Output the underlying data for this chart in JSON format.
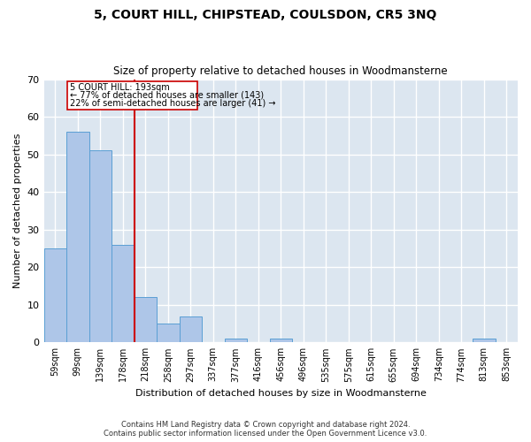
{
  "title": "5, COURT HILL, CHIPSTEAD, COULSDON, CR5 3NQ",
  "subtitle": "Size of property relative to detached houses in Woodmansterne",
  "xlabel": "Distribution of detached houses by size in Woodmansterne",
  "ylabel": "Number of detached properties",
  "categories": [
    "59sqm",
    "99sqm",
    "139sqm",
    "178sqm",
    "218sqm",
    "258sqm",
    "297sqm",
    "337sqm",
    "377sqm",
    "416sqm",
    "456sqm",
    "496sqm",
    "535sqm",
    "575sqm",
    "615sqm",
    "655sqm",
    "694sqm",
    "734sqm",
    "774sqm",
    "813sqm",
    "853sqm"
  ],
  "values": [
    25,
    56,
    51,
    26,
    12,
    5,
    7,
    0,
    1,
    0,
    1,
    0,
    0,
    0,
    0,
    0,
    0,
    0,
    0,
    1,
    0
  ],
  "bar_color": "#aec6e8",
  "bar_edgecolor": "#5a9fd4",
  "vertical_line_x": 3.5,
  "vertical_line_color": "#cc0000",
  "annotation_line1": "5 COURT HILL: 193sqm",
  "annotation_line2": "← 77% of detached houses are smaller (143)",
  "annotation_line3": "22% of semi-detached houses are larger (41) →",
  "annotation_box_color": "#cc0000",
  "ylim": [
    0,
    70
  ],
  "yticks": [
    0,
    10,
    20,
    30,
    40,
    50,
    60,
    70
  ],
  "background_color": "#dce6f0",
  "grid_color": "#ffffff",
  "footer_line1": "Contains HM Land Registry data © Crown copyright and database right 2024.",
  "footer_line2": "Contains public sector information licensed under the Open Government Licence v3.0."
}
